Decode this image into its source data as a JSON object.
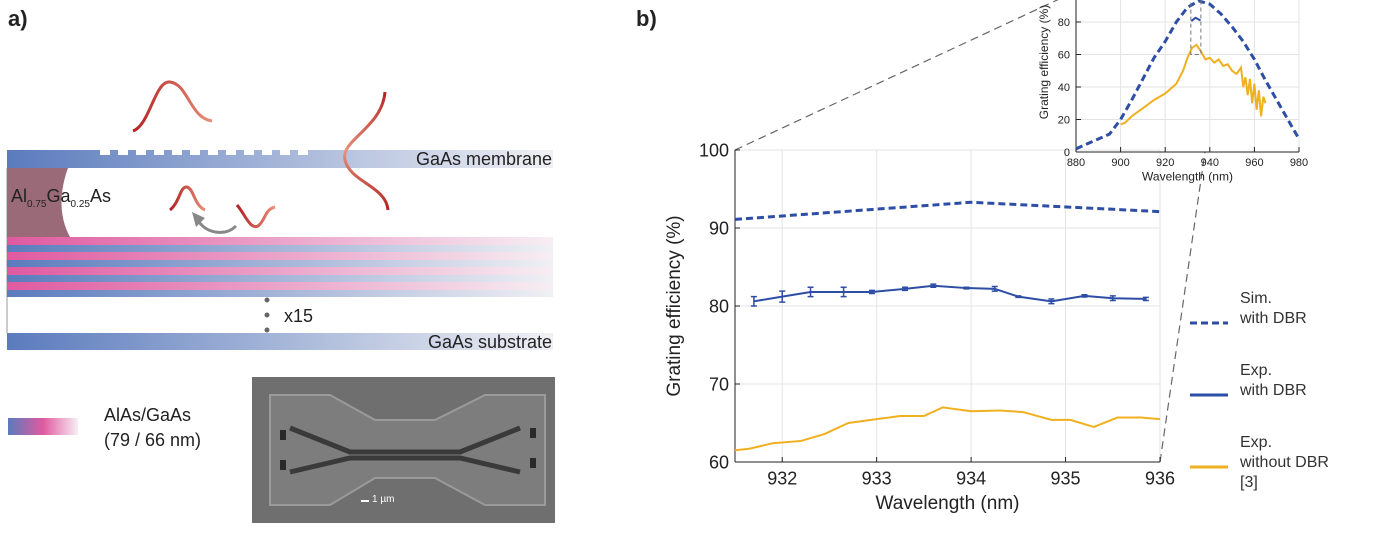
{
  "panel_a": {
    "label": "a)",
    "membrane": "GaAs membrane",
    "sacrificial": [
      "Al",
      "0.75",
      "Ga",
      "0.25",
      "As"
    ],
    "repeat": "x15",
    "substrate": "GaAs substrate",
    "legend_title": "AlAs/GaAs",
    "legend_thickness": "(79 / 66 nm)",
    "scale_bar": "1 µm"
  },
  "panel_b": {
    "label": "b)"
  },
  "chart_data": [
    {
      "type": "line",
      "xlabel": "Wavelength (nm)",
      "ylabel": "Grating efficiency (%)",
      "xlim": [
        931.5,
        936
      ],
      "xticks": [
        932,
        933,
        934,
        935,
        936
      ],
      "ylim": [
        60,
        100
      ],
      "yticks": [
        60,
        70,
        80,
        90,
        100
      ],
      "grid": true,
      "legend": "outside-right",
      "series": [
        {
          "name": "Sim.\nwith DBR",
          "color": "#2e4ea6",
          "dashed": true,
          "x": [
            931.5,
            934,
            936
          ],
          "values": [
            91.1,
            93.3,
            92.1
          ]
        },
        {
          "name": "Exp.\nwith DBR",
          "color": "#2e4ea6",
          "dashed": false,
          "x": [
            931.7,
            932,
            932.3,
            932.65,
            932.95,
            933.3,
            933.6,
            933.95,
            934.25,
            934.5,
            934.85,
            935.2,
            935.5,
            935.85
          ],
          "values": [
            80.6,
            81.2,
            81.8,
            81.8,
            81.8,
            82.2,
            82.6,
            82.3,
            82.2,
            81.2,
            80.6,
            81.3,
            81.0,
            80.9
          ],
          "errors": [
            0.6,
            0.7,
            0.6,
            0.6,
            0.2,
            0.2,
            0.2,
            0.1,
            0.3,
            0.1,
            0.3,
            0.15,
            0.3,
            0.2
          ]
        },
        {
          "name": "Exp.\nwithout DBR\n[3]",
          "color": "#f0b020",
          "dashed": false,
          "x": [
            931.5,
            931.65,
            931.9,
            932.2,
            932.45,
            932.7,
            933.0,
            933.25,
            933.5,
            933.7,
            934.0,
            934.3,
            934.55,
            934.85,
            935.05,
            935.3,
            935.55,
            935.8,
            936
          ],
          "values": [
            61.5,
            61.7,
            62.4,
            62.7,
            63.6,
            65.0,
            65.5,
            65.9,
            65.9,
            67.0,
            66.5,
            66.6,
            66.4,
            65.4,
            65.4,
            64.5,
            65.7,
            65.7,
            65.5
          ]
        }
      ]
    },
    {
      "type": "line",
      "xlabel": "Wavelength (nm)",
      "ylabel": "Grating efficiency (%)",
      "xlim": [
        880,
        980
      ],
      "xticks": [
        880,
        900,
        920,
        940,
        960,
        980
      ],
      "ylim": [
        0,
        100
      ],
      "yticks": [
        0,
        20,
        40,
        60,
        80
      ],
      "grid": true,
      "series": [
        {
          "color": "#2e4ea6",
          "dashed": true,
          "x": [
            880,
            885,
            890,
            895,
            900,
            905,
            910,
            915,
            920,
            925,
            930,
            935,
            940,
            945,
            950,
            955,
            960,
            965,
            970,
            975,
            980
          ],
          "values": [
            2,
            5,
            8,
            11,
            20,
            32,
            45,
            58,
            68,
            80,
            89,
            93,
            91,
            85,
            77,
            68,
            57,
            44,
            32,
            20,
            8
          ]
        },
        {
          "color": "#2e4ea6",
          "dashed": false,
          "x": [
            931.7,
            933.6,
            935.85
          ],
          "values": [
            80.6,
            82.6,
            80.9
          ]
        },
        {
          "color": "#f0b020",
          "dashed": false,
          "x": [
            900,
            902,
            905,
            910,
            915,
            920,
            925,
            928,
            930,
            932,
            934,
            936,
            938,
            940,
            942,
            944,
            946,
            948,
            950,
            952,
            954,
            955,
            956,
            957,
            958,
            959,
            960,
            961,
            962,
            963,
            964,
            965
          ],
          "values": [
            17,
            18,
            22,
            27,
            32,
            36,
            42,
            50,
            58,
            64,
            66,
            62,
            57,
            58,
            55,
            57,
            53,
            54,
            50,
            48,
            52,
            40,
            46,
            35,
            45,
            30,
            42,
            26,
            38,
            22,
            34,
            30
          ]
        }
      ]
    }
  ]
}
